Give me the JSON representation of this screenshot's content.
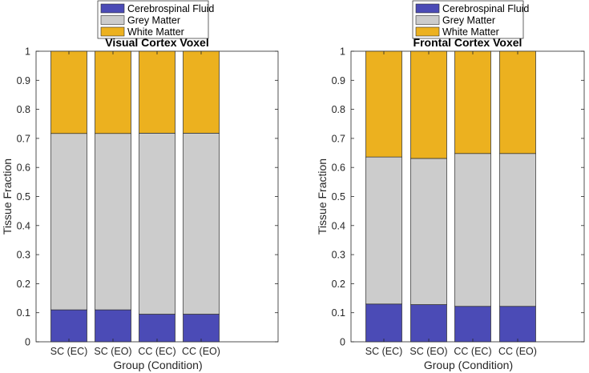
{
  "chart_data": [
    {
      "type": "bar",
      "stacked": true,
      "title": "Visual Cortex Voxel",
      "xlabel": "Group (Condition)",
      "ylabel": "Tissue Fraction",
      "ylim": [
        0,
        1
      ],
      "yticks": [
        "0",
        "0.1",
        "0.2",
        "0.3",
        "0.4",
        "0.5",
        "0.6",
        "0.7",
        "0.8",
        "0.9",
        "1"
      ],
      "categories": [
        "SC (EC)",
        "SC (EO)",
        "CC (EC)",
        "CC (EO)"
      ],
      "series": [
        {
          "name": "Cerebrospinal Fluid",
          "color": "#4b4bb6",
          "values": [
            0.11,
            0.11,
            0.095,
            0.095
          ]
        },
        {
          "name": "Grey Matter",
          "color": "#cccccc",
          "values": [
            0.607,
            0.607,
            0.623,
            0.623
          ]
        },
        {
          "name": "White Matter",
          "color": "#ecb11f",
          "values": [
            0.283,
            0.283,
            0.282,
            0.282
          ]
        }
      ],
      "legend": {
        "placement": "top",
        "items": [
          "Cerebrospinal Fluid",
          "Grey Matter",
          "White Matter"
        ]
      }
    },
    {
      "type": "bar",
      "stacked": true,
      "title": "Frontal Cortex Voxel",
      "xlabel": "Group (Condition)",
      "ylabel": "Tissue Fraction",
      "ylim": [
        0,
        1
      ],
      "yticks": [
        "0",
        "0.1",
        "0.2",
        "0.3",
        "0.4",
        "0.5",
        "0.6",
        "0.7",
        "0.8",
        "0.9",
        "1"
      ],
      "categories": [
        "SC (EC)",
        "SC (EO)",
        "CC (EC)",
        "CC (EO)"
      ],
      "series": [
        {
          "name": "Cerebrospinal Fluid",
          "color": "#4b4bb6",
          "values": [
            0.13,
            0.128,
            0.122,
            0.122
          ]
        },
        {
          "name": "Grey Matter",
          "color": "#cccccc",
          "values": [
            0.506,
            0.503,
            0.526,
            0.526
          ]
        },
        {
          "name": "White Matter",
          "color": "#ecb11f",
          "values": [
            0.364,
            0.369,
            0.352,
            0.352
          ]
        }
      ],
      "legend": {
        "placement": "top",
        "items": [
          "Cerebrospinal Fluid",
          "Grey Matter",
          "White Matter"
        ]
      }
    }
  ]
}
